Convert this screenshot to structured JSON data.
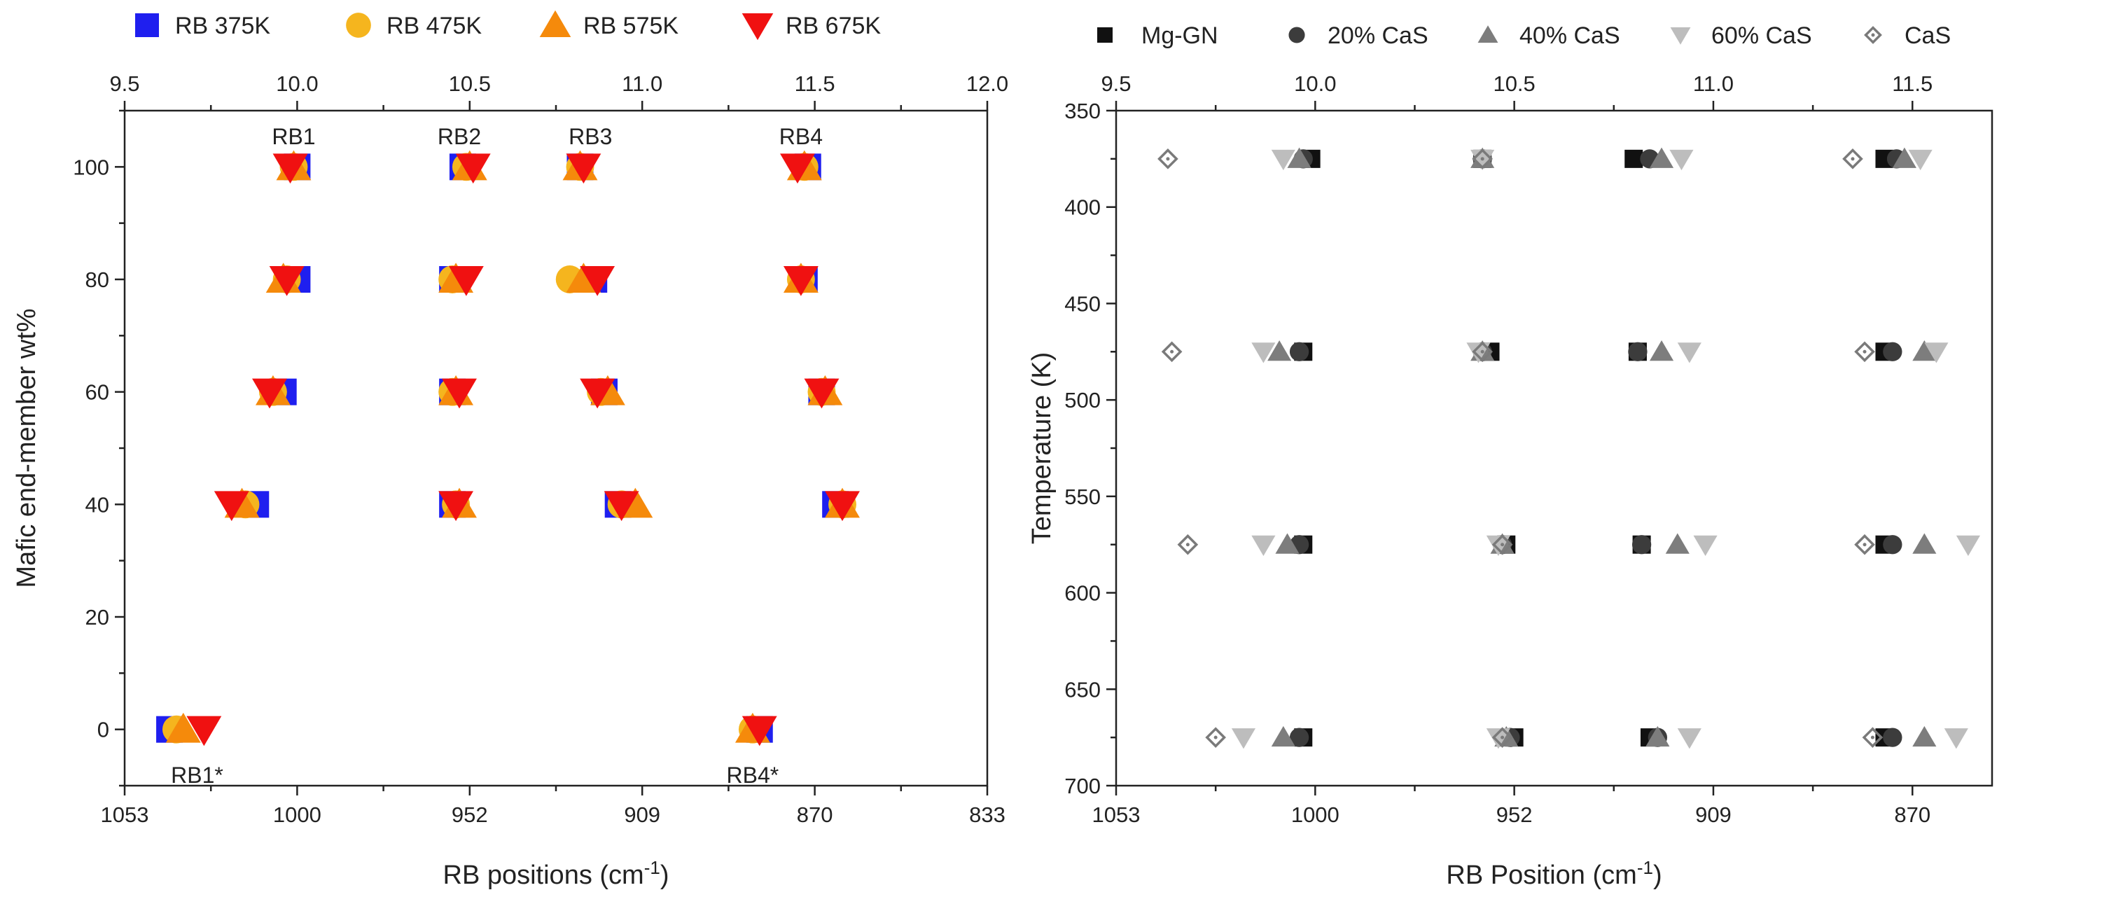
{
  "chart_data": [
    {
      "type": "scatter",
      "legend_position": "top",
      "xlabel": "RB positions (cm",
      "xlabel_sup": "-1",
      "xlabel_end": ")",
      "ylabel": "Mafic end-member wt%",
      "xlim": [
        9.5,
        12.0
      ],
      "ylim": [
        -10,
        110
      ],
      "x_ticks": [
        9.5,
        10.0,
        10.5,
        11.0,
        11.5,
        12.0
      ],
      "top_tick_labels": [
        "9.5",
        "10.0",
        "10.5",
        "11.0",
        "11.5",
        "12.0"
      ],
      "bottom_tick_labels": [
        "1053",
        "1000",
        "952",
        "909",
        "870",
        "833"
      ],
      "y_ticks": [
        0,
        20,
        40,
        60,
        80,
        100
      ],
      "y_tick_labels": [
        "0",
        "20",
        "40",
        "60",
        "80",
        "100"
      ],
      "annotations": [
        {
          "text": "RB1",
          "x": 9.99,
          "y": 104
        },
        {
          "text": "RB2",
          "x": 10.47,
          "y": 104
        },
        {
          "text": "RB3",
          "x": 10.85,
          "y": 104
        },
        {
          "text": "RB4",
          "x": 11.46,
          "y": 104
        },
        {
          "text": "RB1*",
          "x": 9.71,
          "y": -6
        },
        {
          "text": "RB4*",
          "x": 11.32,
          "y": -6
        }
      ],
      "series": [
        {
          "name": "RB 375K",
          "marker": "square",
          "color": "#1f1fef",
          "points": [
            [
              10.0,
              100
            ],
            [
              10.48,
              100
            ],
            [
              10.82,
              100
            ],
            [
              11.48,
              100
            ],
            [
              10.0,
              80
            ],
            [
              10.45,
              80
            ],
            [
              10.86,
              80
            ],
            [
              11.47,
              80
            ],
            [
              9.96,
              60
            ],
            [
              10.45,
              60
            ],
            [
              10.89,
              60
            ],
            [
              11.52,
              60
            ],
            [
              9.88,
              40
            ],
            [
              10.45,
              40
            ],
            [
              10.93,
              40
            ],
            [
              11.56,
              40
            ],
            [
              9.63,
              0
            ],
            [
              11.34,
              0
            ]
          ]
        },
        {
          "name": "RB 475K",
          "marker": "circle",
          "color": "#f5b51e",
          "points": [
            [
              9.99,
              100
            ],
            [
              10.49,
              100
            ],
            [
              10.82,
              100
            ],
            [
              11.47,
              100
            ],
            [
              9.97,
              80
            ],
            [
              10.45,
              80
            ],
            [
              10.79,
              80
            ],
            [
              11.46,
              80
            ],
            [
              9.93,
              60
            ],
            [
              10.45,
              60
            ],
            [
              10.88,
              60
            ],
            [
              11.52,
              60
            ],
            [
              9.85,
              40
            ],
            [
              10.46,
              40
            ],
            [
              10.94,
              40
            ],
            [
              11.58,
              40
            ],
            [
              9.65,
              0
            ],
            [
              11.32,
              0
            ]
          ]
        },
        {
          "name": "RB 575K",
          "marker": "triangle-up",
          "color": "#f58a0b",
          "points": [
            [
              9.99,
              100
            ],
            [
              10.5,
              100
            ],
            [
              10.82,
              100
            ],
            [
              11.47,
              100
            ],
            [
              9.96,
              80
            ],
            [
              10.46,
              80
            ],
            [
              10.83,
              80
            ],
            [
              11.46,
              80
            ],
            [
              9.93,
              60
            ],
            [
              10.46,
              60
            ],
            [
              10.9,
              60
            ],
            [
              11.53,
              60
            ],
            [
              9.84,
              40
            ],
            [
              10.47,
              40
            ],
            [
              10.98,
              40
            ],
            [
              11.58,
              40
            ],
            [
              9.67,
              0
            ],
            [
              11.32,
              0
            ]
          ]
        },
        {
          "name": "RB 675K",
          "marker": "triangle-down",
          "color": "#f01111",
          "points": [
            [
              9.98,
              100
            ],
            [
              10.51,
              100
            ],
            [
              10.83,
              100
            ],
            [
              11.45,
              100
            ],
            [
              9.97,
              80
            ],
            [
              10.49,
              80
            ],
            [
              10.87,
              80
            ],
            [
              11.46,
              80
            ],
            [
              9.92,
              60
            ],
            [
              10.47,
              60
            ],
            [
              10.87,
              60
            ],
            [
              11.52,
              60
            ],
            [
              9.81,
              40
            ],
            [
              10.46,
              40
            ],
            [
              10.94,
              40
            ],
            [
              11.58,
              40
            ],
            [
              9.73,
              0
            ],
            [
              11.34,
              0
            ]
          ]
        }
      ]
    },
    {
      "type": "scatter",
      "legend_position": "top",
      "xlabel": "RB Position (cm",
      "xlabel_sup": "-1",
      "xlabel_end": ")",
      "ylabel": "Temperature (K)",
      "xlim": [
        9.5,
        11.7
      ],
      "ylim": [
        350,
        700
      ],
      "y_inverted": true,
      "x_ticks": [
        9.5,
        10.0,
        10.5,
        11.0,
        11.5
      ],
      "top_tick_labels": [
        "9.5",
        "10.0",
        "10.5",
        "11.0",
        "11.5"
      ],
      "bottom_tick_labels": [
        "1053",
        "1000",
        "952",
        "909",
        "870"
      ],
      "y_ticks": [
        350,
        400,
        450,
        500,
        550,
        600,
        650,
        700
      ],
      "y_tick_labels": [
        "350",
        "400",
        "450",
        "500",
        "550",
        "600",
        "650",
        "700"
      ],
      "series": [
        {
          "name": "Mg-GN",
          "marker": "square",
          "color": "#111111",
          "points": [
            [
              9.99,
              375
            ],
            [
              10.42,
              375
            ],
            [
              10.8,
              375
            ],
            [
              11.43,
              375
            ],
            [
              9.97,
              475
            ],
            [
              10.44,
              475
            ],
            [
              10.81,
              475
            ],
            [
              11.43,
              475
            ],
            [
              9.97,
              575
            ],
            [
              10.48,
              575
            ],
            [
              10.82,
              575
            ],
            [
              11.43,
              575
            ],
            [
              9.97,
              675
            ],
            [
              10.5,
              675
            ],
            [
              10.84,
              675
            ],
            [
              11.43,
              675
            ]
          ]
        },
        {
          "name": "20% CaS",
          "marker": "circle",
          "color": "#3c3c3c",
          "points": [
            [
              9.97,
              375
            ],
            [
              10.42,
              375
            ],
            [
              10.84,
              375
            ],
            [
              11.46,
              375
            ],
            [
              9.96,
              475
            ],
            [
              10.42,
              475
            ],
            [
              10.81,
              475
            ],
            [
              11.45,
              475
            ],
            [
              9.96,
              575
            ],
            [
              10.47,
              575
            ],
            [
              10.82,
              575
            ],
            [
              11.45,
              575
            ],
            [
              9.96,
              675
            ],
            [
              10.49,
              675
            ],
            [
              10.86,
              675
            ],
            [
              11.45,
              675
            ]
          ]
        },
        {
          "name": "40% CaS",
          "marker": "triangle-up",
          "color": "#7d7d7d",
          "points": [
            [
              9.96,
              375
            ],
            [
              10.42,
              375
            ],
            [
              10.87,
              375
            ],
            [
              11.48,
              375
            ],
            [
              9.91,
              475
            ],
            [
              10.42,
              475
            ],
            [
              10.87,
              475
            ],
            [
              11.53,
              475
            ],
            [
              9.93,
              575
            ],
            [
              10.47,
              575
            ],
            [
              10.91,
              575
            ],
            [
              11.53,
              575
            ],
            [
              9.92,
              675
            ],
            [
              10.48,
              675
            ],
            [
              10.86,
              675
            ],
            [
              11.53,
              675
            ]
          ]
        },
        {
          "name": "60% CaS",
          "marker": "triangle-down",
          "color": "#bdbdbd",
          "points": [
            [
              9.92,
              375
            ],
            [
              10.42,
              375
            ],
            [
              10.92,
              375
            ],
            [
              11.52,
              375
            ],
            [
              9.87,
              475
            ],
            [
              10.41,
              475
            ],
            [
              10.94,
              475
            ],
            [
              11.56,
              475
            ],
            [
              9.87,
              575
            ],
            [
              10.46,
              575
            ],
            [
              10.98,
              575
            ],
            [
              11.64,
              575
            ],
            [
              9.82,
              675
            ],
            [
              10.46,
              675
            ],
            [
              10.94,
              675
            ],
            [
              11.61,
              675
            ]
          ]
        },
        {
          "name": "CaS",
          "marker": "diamond-open",
          "color": "#7a7a7a",
          "points": [
            [
              9.63,
              375
            ],
            [
              10.42,
              375
            ],
            [
              11.35,
              375
            ],
            [
              9.64,
              475
            ],
            [
              10.42,
              475
            ],
            [
              11.38,
              475
            ],
            [
              9.68,
              575
            ],
            [
              10.47,
              575
            ],
            [
              11.38,
              575
            ],
            [
              9.75,
              675
            ],
            [
              10.47,
              675
            ],
            [
              11.4,
              675
            ]
          ]
        }
      ]
    }
  ]
}
